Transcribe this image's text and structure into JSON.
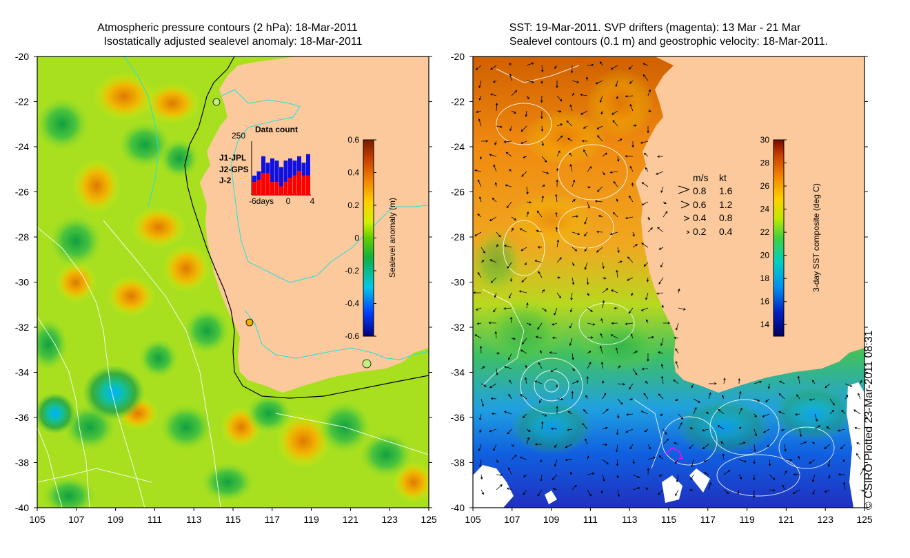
{
  "left_panel": {
    "title_line1": "Atmospheric pressure contours (2 hPa): 18-Mar-2011",
    "title_line2": "Isostatically adjusted sealevel anomaly: 18-Mar-2011",
    "lat_ticks": [
      "-20",
      "-22",
      "-24",
      "-26",
      "-28",
      "-30",
      "-32",
      "-34",
      "-36",
      "-38",
      "-40"
    ],
    "lon_ticks": [
      "105",
      "107",
      "109",
      "111",
      "113",
      "115",
      "117",
      "119",
      "121",
      "123",
      "125"
    ],
    "colorbar": {
      "label": "Sealevel anomaly (m)",
      "ticks": [
        "0.6",
        "0.4",
        "0.2",
        "0",
        "-0.2",
        "-0.4",
        "-0.6"
      ],
      "range": [
        -0.6,
        0.6
      ]
    },
    "inset": {
      "title": "Data count",
      "ymax_label": "250",
      "x_labels": [
        "-6days",
        "0",
        "4"
      ],
      "legend": [
        {
          "label": "J1-JPL",
          "color": "#1010e0"
        },
        {
          "label": "J2-GPS",
          "color": "#ff00ff"
        },
        {
          "label": "J-2",
          "color": "#ff0000"
        }
      ],
      "red_counts": [
        60,
        70,
        100,
        100,
        60,
        60,
        40,
        60,
        80,
        90,
        110,
        90,
        90
      ],
      "blue_counts": [
        90,
        110,
        180,
        150,
        170,
        160,
        130,
        160,
        170,
        160,
        180,
        150,
        190
      ],
      "ymax": 250
    }
  },
  "right_panel": {
    "title_line1": "SST: 19-Mar-2011. SVP drifters (magenta): 13 Mar - 21 Mar",
    "title_line2": "Sealevel contours (0.1 m) and geostrophic velocity: 18-Mar-2011.",
    "lat_ticks": [
      "-20",
      "-22",
      "-24",
      "-26",
      "-28",
      "-30",
      "-32",
      "-34",
      "-36",
      "-38",
      "-40"
    ],
    "lon_ticks": [
      "105",
      "107",
      "109",
      "111",
      "113",
      "115",
      "117",
      "119",
      "121",
      "123",
      "125"
    ],
    "colorbar": {
      "label": "3-day SST composite (deg C)",
      "ticks": [
        "30",
        "28",
        "26",
        "24",
        "22",
        "20",
        "18",
        "16",
        "14"
      ],
      "range": [
        13,
        30
      ]
    },
    "velocity_legend": {
      "header_ms": "m/s",
      "header_kt": "kt",
      "rows": [
        {
          "ms": "0.8",
          "kt": "1.6"
        },
        {
          "ms": "0.6",
          "kt": "1.2"
        },
        {
          "ms": "0.4",
          "kt": "0.8"
        },
        {
          "ms": "0.2",
          "kt": "0.4"
        }
      ]
    }
  },
  "copyright": "© CSIRO Plotted 23-Mar-2011 08:31",
  "colors": {
    "land": "#fbc99b",
    "coast_contour": "#00e0e0",
    "pressure_contour": "#ffffff"
  }
}
